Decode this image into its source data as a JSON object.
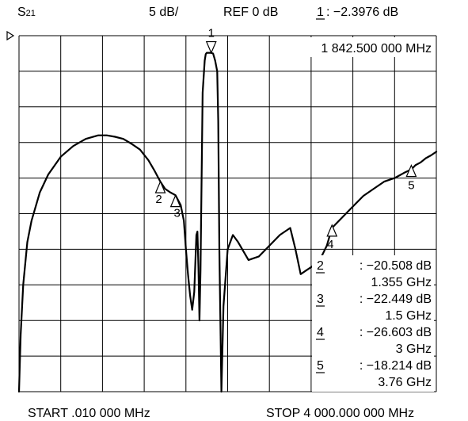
{
  "header": {
    "parameter_prefix": "S",
    "parameter_sub": "21",
    "scale": "5 dB/",
    "ref": "REF 0 dB",
    "active_marker_num": "1",
    "active_marker_value": ": −2.3976 dB",
    "active_marker_freq": "1 842.500 000 MHz"
  },
  "footer": {
    "start": "START .010 000 MHz",
    "stop": "STOP 4 000.000 000 MHz"
  },
  "chart_data": {
    "type": "line",
    "xlim_mhz": [
      0.01,
      4000
    ],
    "ref_db": 0,
    "db_per_div": 5,
    "divisions_y": 10,
    "divisions_x": 10,
    "ylim_db": [
      -50,
      0
    ],
    "grid": true,
    "series": [
      {
        "x_mhz": [
          0.01,
          16,
          40,
          80,
          120,
          200,
          280,
          400,
          520,
          640,
          760,
          840,
          920,
          1000,
          1080,
          1160,
          1240,
          1300,
          1355,
          1400,
          1450,
          1500,
          1550,
          1580,
          1600,
          1620,
          1640,
          1660,
          1680,
          1700,
          1710,
          1720,
          1730,
          1740,
          1750,
          1760,
          1780,
          1790,
          1800,
          1820,
          1842.5,
          1860,
          1880,
          1900,
          1910,
          1920,
          1940,
          1960,
          2000,
          2050,
          2100,
          2200,
          2300,
          2400,
          2500,
          2600,
          2650,
          2700,
          2750,
          2800,
          2850,
          2900,
          2950,
          3000,
          3100,
          3200,
          3300,
          3400,
          3500,
          3600,
          3700,
          3760,
          3800,
          3850,
          3900,
          3950,
          4000
        ],
        "y_db": [
          -50,
          -42,
          -35,
          -29,
          -26,
          -22,
          -19.5,
          -17,
          -15.5,
          -14.5,
          -14,
          -14,
          -14.2,
          -14.5,
          -15.2,
          -16,
          -17.5,
          -19,
          -20.5,
          -21.5,
          -22,
          -22.4,
          -23.8,
          -26,
          -30,
          -33.5,
          -36.5,
          -38.5,
          -36,
          -28,
          -27.5,
          -32.5,
          -40,
          -33,
          -20,
          -8,
          -3.5,
          -2.6,
          -2.4,
          -2.4,
          -2.4,
          -2.5,
          -3.5,
          -5,
          -12,
          -30,
          -50,
          -38,
          -30,
          -28,
          -29,
          -31.5,
          -31,
          -29.5,
          -28,
          -27,
          -30,
          -33.5,
          -33,
          -32.5,
          -32,
          -31,
          -29.5,
          -27,
          -25.5,
          -24,
          -22.5,
          -21.5,
          -20.5,
          -20,
          -19.2,
          -18.8,
          -18.2,
          -17.8,
          -17.2,
          -16.8,
          -16.3
        ]
      }
    ],
    "markers": [
      {
        "num": "1",
        "value": ": −2.3976 dB",
        "freq": "1 842.500 000 MHz",
        "x_mhz": 1842.5,
        "y_db": -2.4
      },
      {
        "num": "2",
        "value": ": −20.508 dB",
        "freq": "1.355 GHz",
        "x_mhz": 1355,
        "y_db": -20.508
      },
      {
        "num": "3",
        "value": ": −22.449 dB",
        "freq": "1.5 GHz",
        "x_mhz": 1500,
        "y_db": -22.449
      },
      {
        "num": "4",
        "value": ": −26.603 dB",
        "freq": "3 GHz",
        "x_mhz": 3000,
        "y_db": -26.603
      },
      {
        "num": "5",
        "value": ": −18.214 dB",
        "freq": "3.76 GHz",
        "x_mhz": 3760,
        "y_db": -18.214
      }
    ]
  }
}
